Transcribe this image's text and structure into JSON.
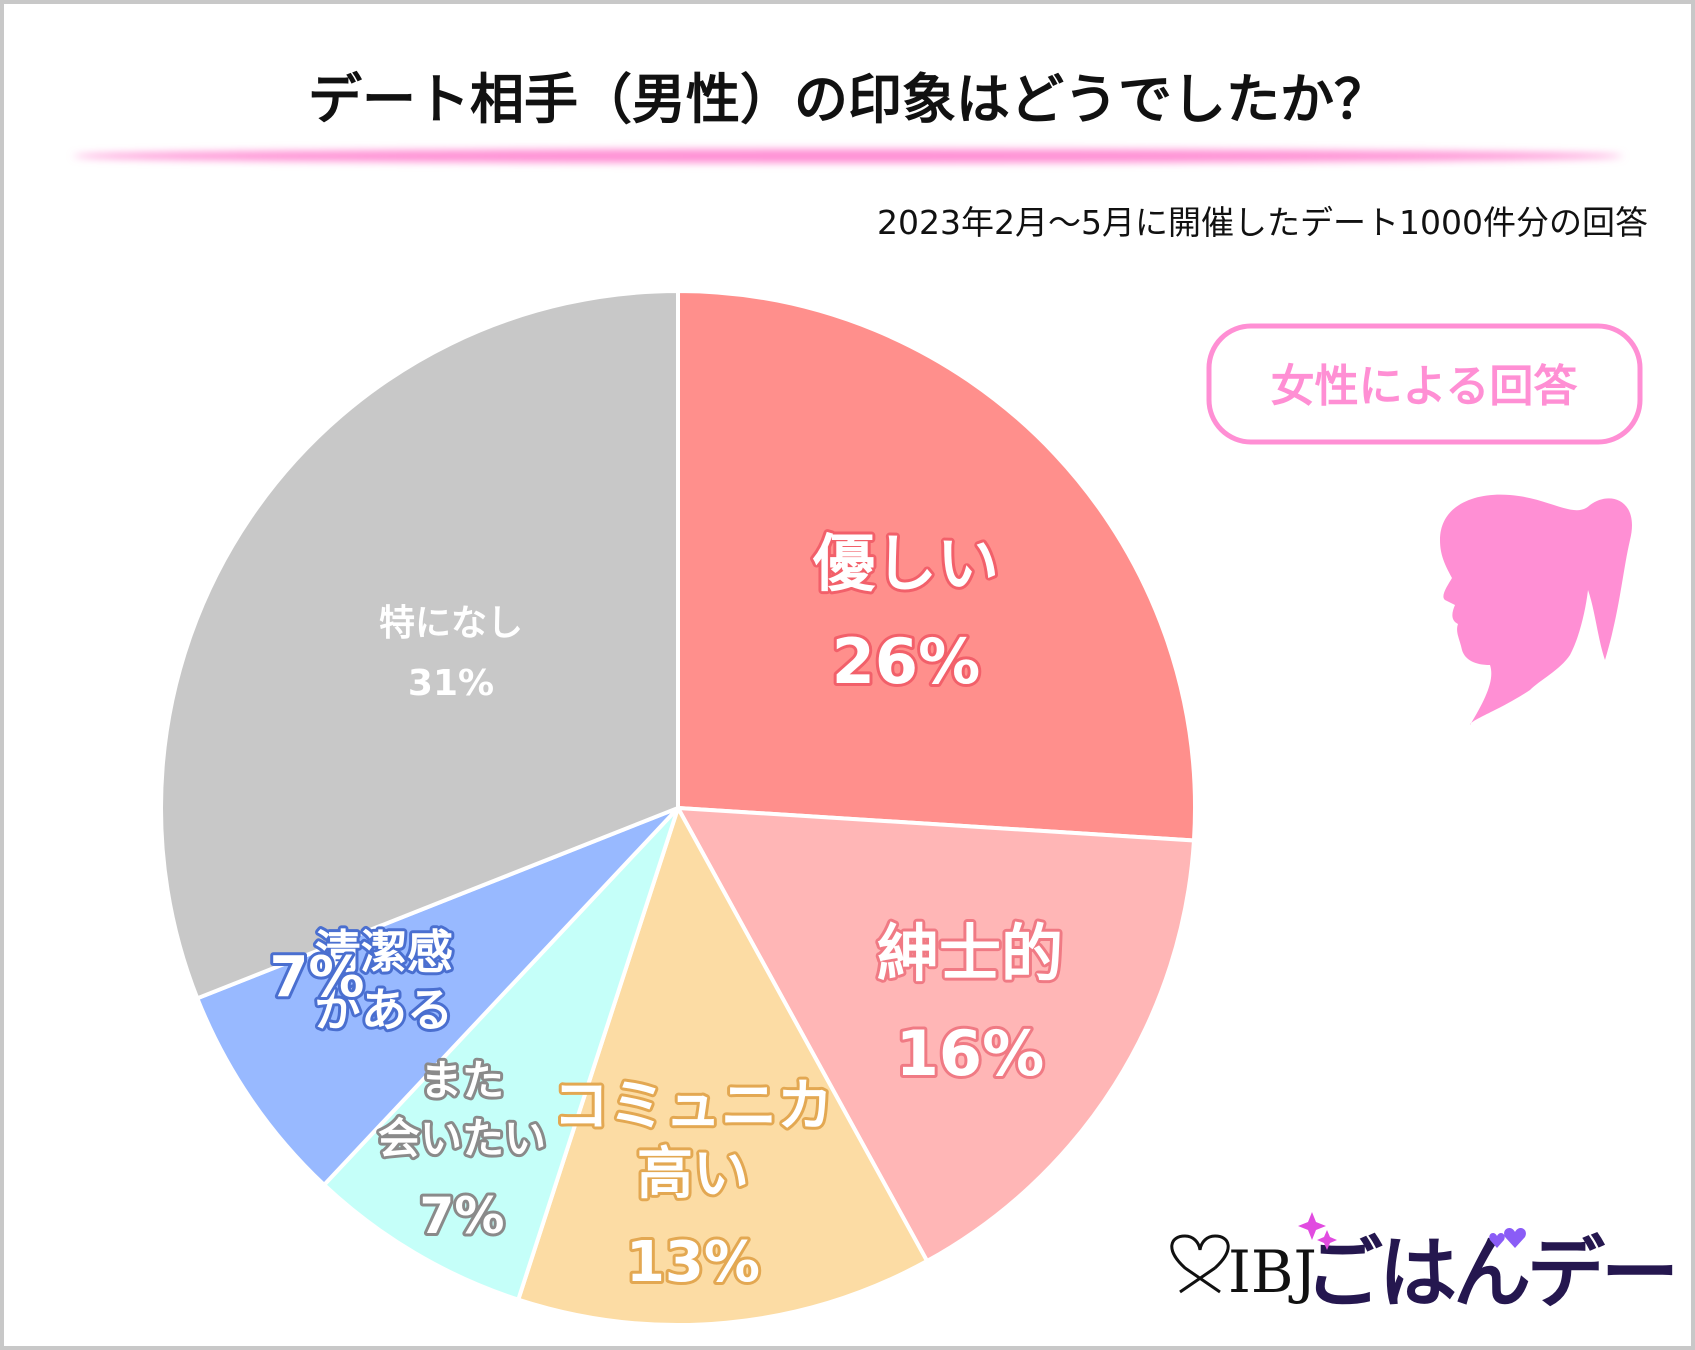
{
  "chart_data": {
    "type": "pie",
    "title": "デート相手（男性）の印象はどうでしたか？",
    "subtitle": "2023年2月〜5月に開催したデート1000件分の回答",
    "badge": "女性による回答",
    "start": "12 o'clock, clockwise",
    "slices": [
      {
        "label_lines": [
          "優しい"
        ],
        "value": 26,
        "value_label": "26%",
        "color": "#ff8f8c",
        "outline": "#f2606a"
      },
      {
        "label_lines": [
          "紳士的"
        ],
        "value": 16,
        "value_label": "16%",
        "color": "#ffb6b6",
        "outline": "#f07a84"
      },
      {
        "label_lines": [
          "コミュニカ",
          "高い"
        ],
        "value": 13,
        "value_label": "13%",
        "color": "#fcdca4",
        "outline": "#e3a852"
      },
      {
        "label_lines": [
          "また",
          "会いたい"
        ],
        "value": 7,
        "value_label": "7%",
        "color": "#c5fff9",
        "outline": "#8a8a8a"
      },
      {
        "label_lines": [
          "清潔感",
          "がある"
        ],
        "value": 7,
        "value_label": "7%",
        "color": "#98b9ff",
        "outline": "#4a6fd0"
      },
      {
        "label_lines": [
          "特になし"
        ],
        "value": 31,
        "value_label": "31%",
        "color": "#c8c8c8",
        "outline": "#c8c8c8"
      }
    ]
  },
  "colors": {
    "accent_pink": "#ff8fd4",
    "logo_navy": "#25174f",
    "logo_magenta": "#e14be0",
    "logo_purple": "#8a5cf6"
  },
  "logo": {
    "ibj": "IBJ",
    "name": "ごはんデート"
  }
}
